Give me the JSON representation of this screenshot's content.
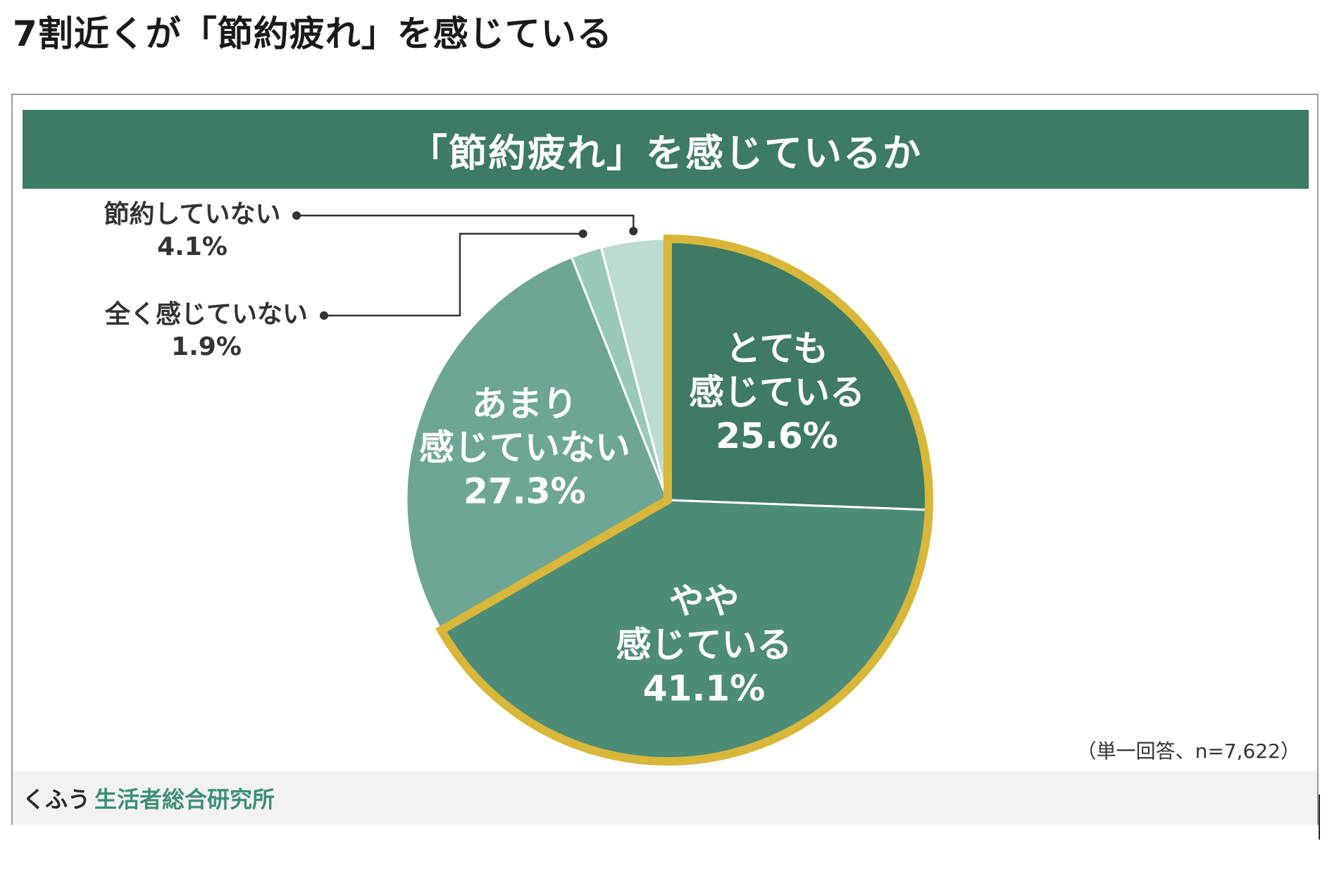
{
  "heading": "7割近くが「節約疲れ」を感じている",
  "colors": {
    "banner": "#3d7b63",
    "highlight_outline": "#d8b73a",
    "slice_totemo": "#3f7a64",
    "slice_yaya": "#4d8c76",
    "slice_amari": "#6ea695",
    "slice_mattaku": "#9ac8b9",
    "slice_setsuyaku_nashi": "#bcdcd1",
    "brand_accent": "#3d8f77"
  },
  "chart_data": {
    "type": "pie",
    "title": "「節約疲れ」を感じているか",
    "start": "12 o'clock",
    "direction": "clockwise",
    "highlighted_slices": [
      "とても感じている",
      "やや感じている"
    ],
    "slices": [
      {
        "label_lines": [
          "とても",
          "感じている"
        ],
        "label": "とても感じている",
        "value": 25.6,
        "value_text": "25.6%",
        "label_position": "inside",
        "color": "#3f7a64"
      },
      {
        "label_lines": [
          "やや",
          "感じている"
        ],
        "label": "やや感じている",
        "value": 41.1,
        "value_text": "41.1%",
        "label_position": "inside",
        "color": "#4d8c76"
      },
      {
        "label_lines": [
          "あまり",
          "感じていない"
        ],
        "label": "あまり感じていない",
        "value": 27.3,
        "value_text": "27.3%",
        "label_position": "inside",
        "color": "#6ea695"
      },
      {
        "label_lines": [
          "全く感じていない"
        ],
        "label": "全く感じていない",
        "value": 1.9,
        "value_text": "1.9%",
        "label_position": "outside-left",
        "color": "#9ac8b9"
      },
      {
        "label_lines": [
          "節約していない"
        ],
        "label": "節約していない",
        "value": 4.1,
        "value_text": "4.1%",
        "label_position": "outside-left",
        "color": "#bcdcd1"
      }
    ],
    "note": "（単一回答、n=7,622）"
  },
  "footer": {
    "brand_prefix": "くふう",
    "brand_name": "生活者総合研究所"
  }
}
